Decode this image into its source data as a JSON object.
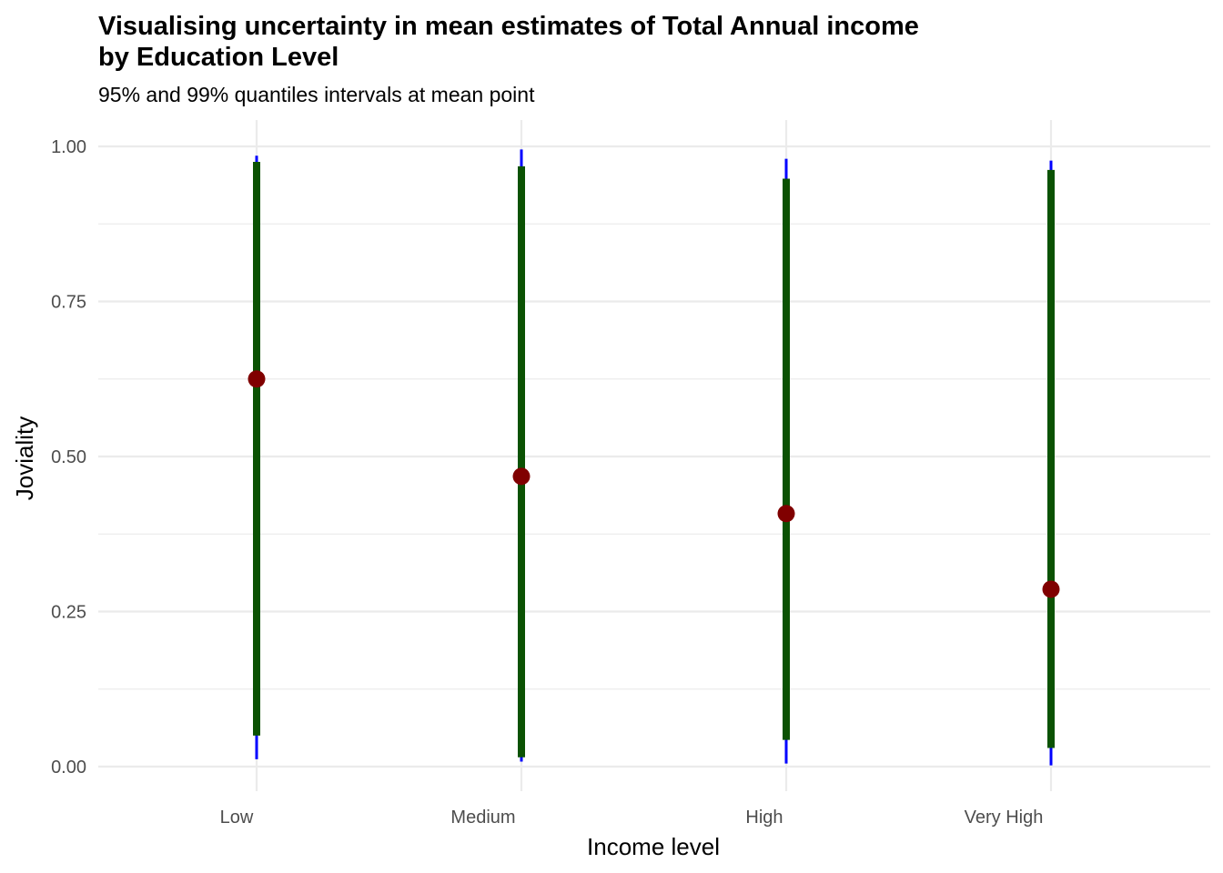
{
  "chart_data": {
    "type": "errorbar",
    "title_line1": "Visualising uncertainty in mean estimates of Total Annual income",
    "title_line2": "by Education Level",
    "subtitle": "95% and 99% quantiles intervals at mean point",
    "xlabel": "Income level",
    "ylabel": "Joviality",
    "categories": [
      "Low",
      "Medium",
      "High",
      "Very High"
    ],
    "ylim": [
      0,
      1
    ],
    "y_ticks": [
      "0.00",
      "0.25",
      "0.50",
      "0.75",
      "1.00"
    ],
    "y_tick_values": [
      0,
      0.25,
      0.5,
      0.75,
      1.0
    ],
    "grid": true,
    "colors": {
      "interval_99": "#0000ff",
      "interval_95": "#0b5203",
      "mean_point": "#800000",
      "grid": "#ebebeb"
    },
    "series": [
      {
        "category": "Low",
        "mean": 0.625,
        "q95": [
          0.05,
          0.975
        ],
        "q99": [
          0.012,
          0.985
        ]
      },
      {
        "category": "Medium",
        "mean": 0.468,
        "q95": [
          0.015,
          0.968
        ],
        "q99": [
          0.008,
          0.995
        ]
      },
      {
        "category": "High",
        "mean": 0.408,
        "q95": [
          0.043,
          0.948
        ],
        "q99": [
          0.005,
          0.98
        ]
      },
      {
        "category": "Very High",
        "mean": 0.286,
        "q95": [
          0.03,
          0.962
        ],
        "q99": [
          0.002,
          0.977
        ]
      }
    ]
  }
}
